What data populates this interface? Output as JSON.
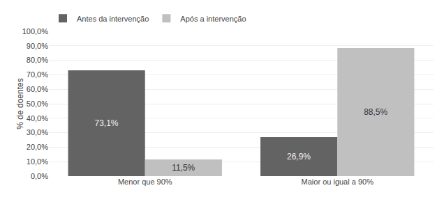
{
  "chart_data": {
    "type": "bar",
    "categories": [
      "Menor que 90%",
      "Maior ou igual a 90%"
    ],
    "series": [
      {
        "name": "Antes da intervenção",
        "color": "#636363",
        "values": [
          73.1,
          26.9
        ],
        "value_labels": [
          "73,1%",
          "26,9%"
        ]
      },
      {
        "name": "Após a intervenção",
        "color": "#c0c0c0",
        "values": [
          11.5,
          88.5
        ],
        "value_labels": [
          "11,5%",
          "88,5%"
        ]
      }
    ],
    "ylabel": "% de doentes",
    "ylim": [
      0,
      100
    ],
    "yticks": [
      {
        "value": 0,
        "label": "0,0%"
      },
      {
        "value": 10,
        "label": "10,0%"
      },
      {
        "value": 20,
        "label": "20,0%"
      },
      {
        "value": 30,
        "label": "30,0%"
      },
      {
        "value": 40,
        "label": "40,0%"
      },
      {
        "value": 50,
        "label": "50,0%"
      },
      {
        "value": 60,
        "label": "60,0%"
      },
      {
        "value": 70,
        "label": "70,0%"
      },
      {
        "value": 80,
        "label": "80,0%"
      },
      {
        "value": 90,
        "label": "90,0%"
      },
      {
        "value": 100,
        "label": "100,0%"
      }
    ],
    "grid": true,
    "legend": "upper left",
    "data_labels": true
  }
}
